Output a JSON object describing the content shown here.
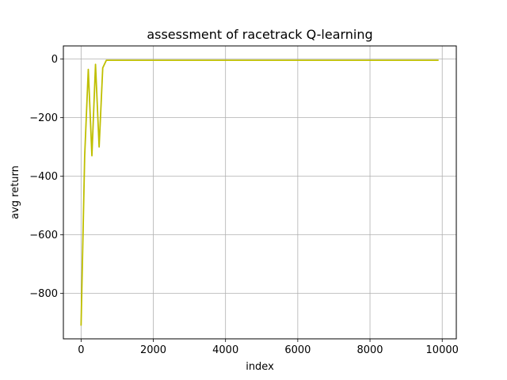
{
  "chart_data": {
    "type": "line",
    "title": "assessment of racetrack Q-learning",
    "xlabel": "index",
    "ylabel": "avg return",
    "xlim": [
      -490,
      10390
    ],
    "ylim": [
      -955,
      45
    ],
    "x_ticks": [
      0,
      2000,
      4000,
      6000,
      8000,
      10000
    ],
    "x_tick_labels": [
      "0",
      "2000",
      "4000",
      "6000",
      "8000",
      "10000"
    ],
    "y_ticks": [
      0,
      -200,
      -400,
      -600,
      -800
    ],
    "y_tick_labels": [
      "0",
      "−200",
      "−400",
      "−600",
      "−800"
    ],
    "grid": true,
    "series": [
      {
        "color": "#bfbf00",
        "x": [
          0,
          100,
          200,
          300,
          400,
          500,
          600,
          700,
          800,
          900,
          1000,
          2000,
          3000,
          4000,
          5000,
          6000,
          7000,
          8000,
          9000,
          9900
        ],
        "y": [
          -910,
          -330,
          -35,
          -330,
          -18,
          -300,
          -30,
          -4,
          -4,
          -4,
          -4,
          -4,
          -4,
          -4,
          -4,
          -4,
          -4,
          -4,
          -4,
          -4
        ]
      }
    ]
  }
}
